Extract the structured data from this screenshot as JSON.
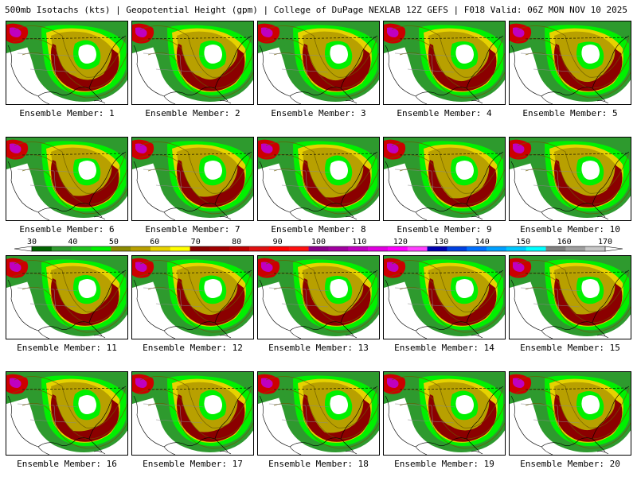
{
  "header": {
    "title_left": "500mb Isotachs (kts) | Geopotential Height (gpm) | College of DuPage NEXLAB",
    "title_right": "12Z GEFS | F018 Valid: 06Z MON NOV 10 2025"
  },
  "member_label_prefix": "Ensemble Member: ",
  "members": [
    {
      "label": "Ensemble Member: 1"
    },
    {
      "label": "Ensemble Member: 2"
    },
    {
      "label": "Ensemble Member: 3"
    },
    {
      "label": "Ensemble Member: 4"
    },
    {
      "label": "Ensemble Member: 5"
    },
    {
      "label": "Ensemble Member: 6"
    },
    {
      "label": "Ensemble Member: 7"
    },
    {
      "label": "Ensemble Member: 8"
    },
    {
      "label": "Ensemble Member: 9"
    },
    {
      "label": "Ensemble Member: 10"
    },
    {
      "label": "Ensemble Member: 11"
    },
    {
      "label": "Ensemble Member: 12"
    },
    {
      "label": "Ensemble Member: 13"
    },
    {
      "label": "Ensemble Member: 14"
    },
    {
      "label": "Ensemble Member: 15"
    },
    {
      "label": "Ensemble Member: 16"
    },
    {
      "label": "Ensemble Member: 17"
    },
    {
      "label": "Ensemble Member: 18"
    },
    {
      "label": "Ensemble Member: 19"
    },
    {
      "label": "Ensemble Member: 20"
    }
  ],
  "legend": {
    "min": 30,
    "max": 170,
    "tick_labels": [
      "30",
      "40",
      "50",
      "60",
      "70",
      "80",
      "90",
      "100",
      "110",
      "120",
      "130",
      "140",
      "150",
      "160",
      "170"
    ],
    "colors": [
      "#006400",
      "#2e9a2e",
      "#1ec21e",
      "#00f000",
      "#8b8b00",
      "#b8a000",
      "#e6d200",
      "#ffff00",
      "#8b0000",
      "#a00000",
      "#c00000",
      "#e01010",
      "#ff0000",
      "#ff1010",
      "#8b008b",
      "#a000a0",
      "#c000c0",
      "#e000e0",
      "#ff00ff",
      "#ff40ff",
      "#0000b0",
      "#0040e0",
      "#0070ff",
      "#00a0ff",
      "#00c8ff",
      "#00ffff",
      "#808080",
      "#a0a0a0",
      "#c8c8c8"
    ]
  },
  "map_colors": {
    "land_bg": "#ffffff",
    "green_dark": "#006400",
    "green_mid": "#2e9a2e",
    "green_light": "#1ec21e",
    "green_bright": "#00f000",
    "olive": "#8b8b00",
    "gold": "#b8a000",
    "yellow": "#e6d200",
    "yellow_bright": "#ffff00",
    "red_dark": "#8b0000",
    "red": "#cc0000",
    "magenta": "#c000c0",
    "contour": "#6b5a00",
    "coast": "#000000",
    "border_grey": "#888888"
  }
}
